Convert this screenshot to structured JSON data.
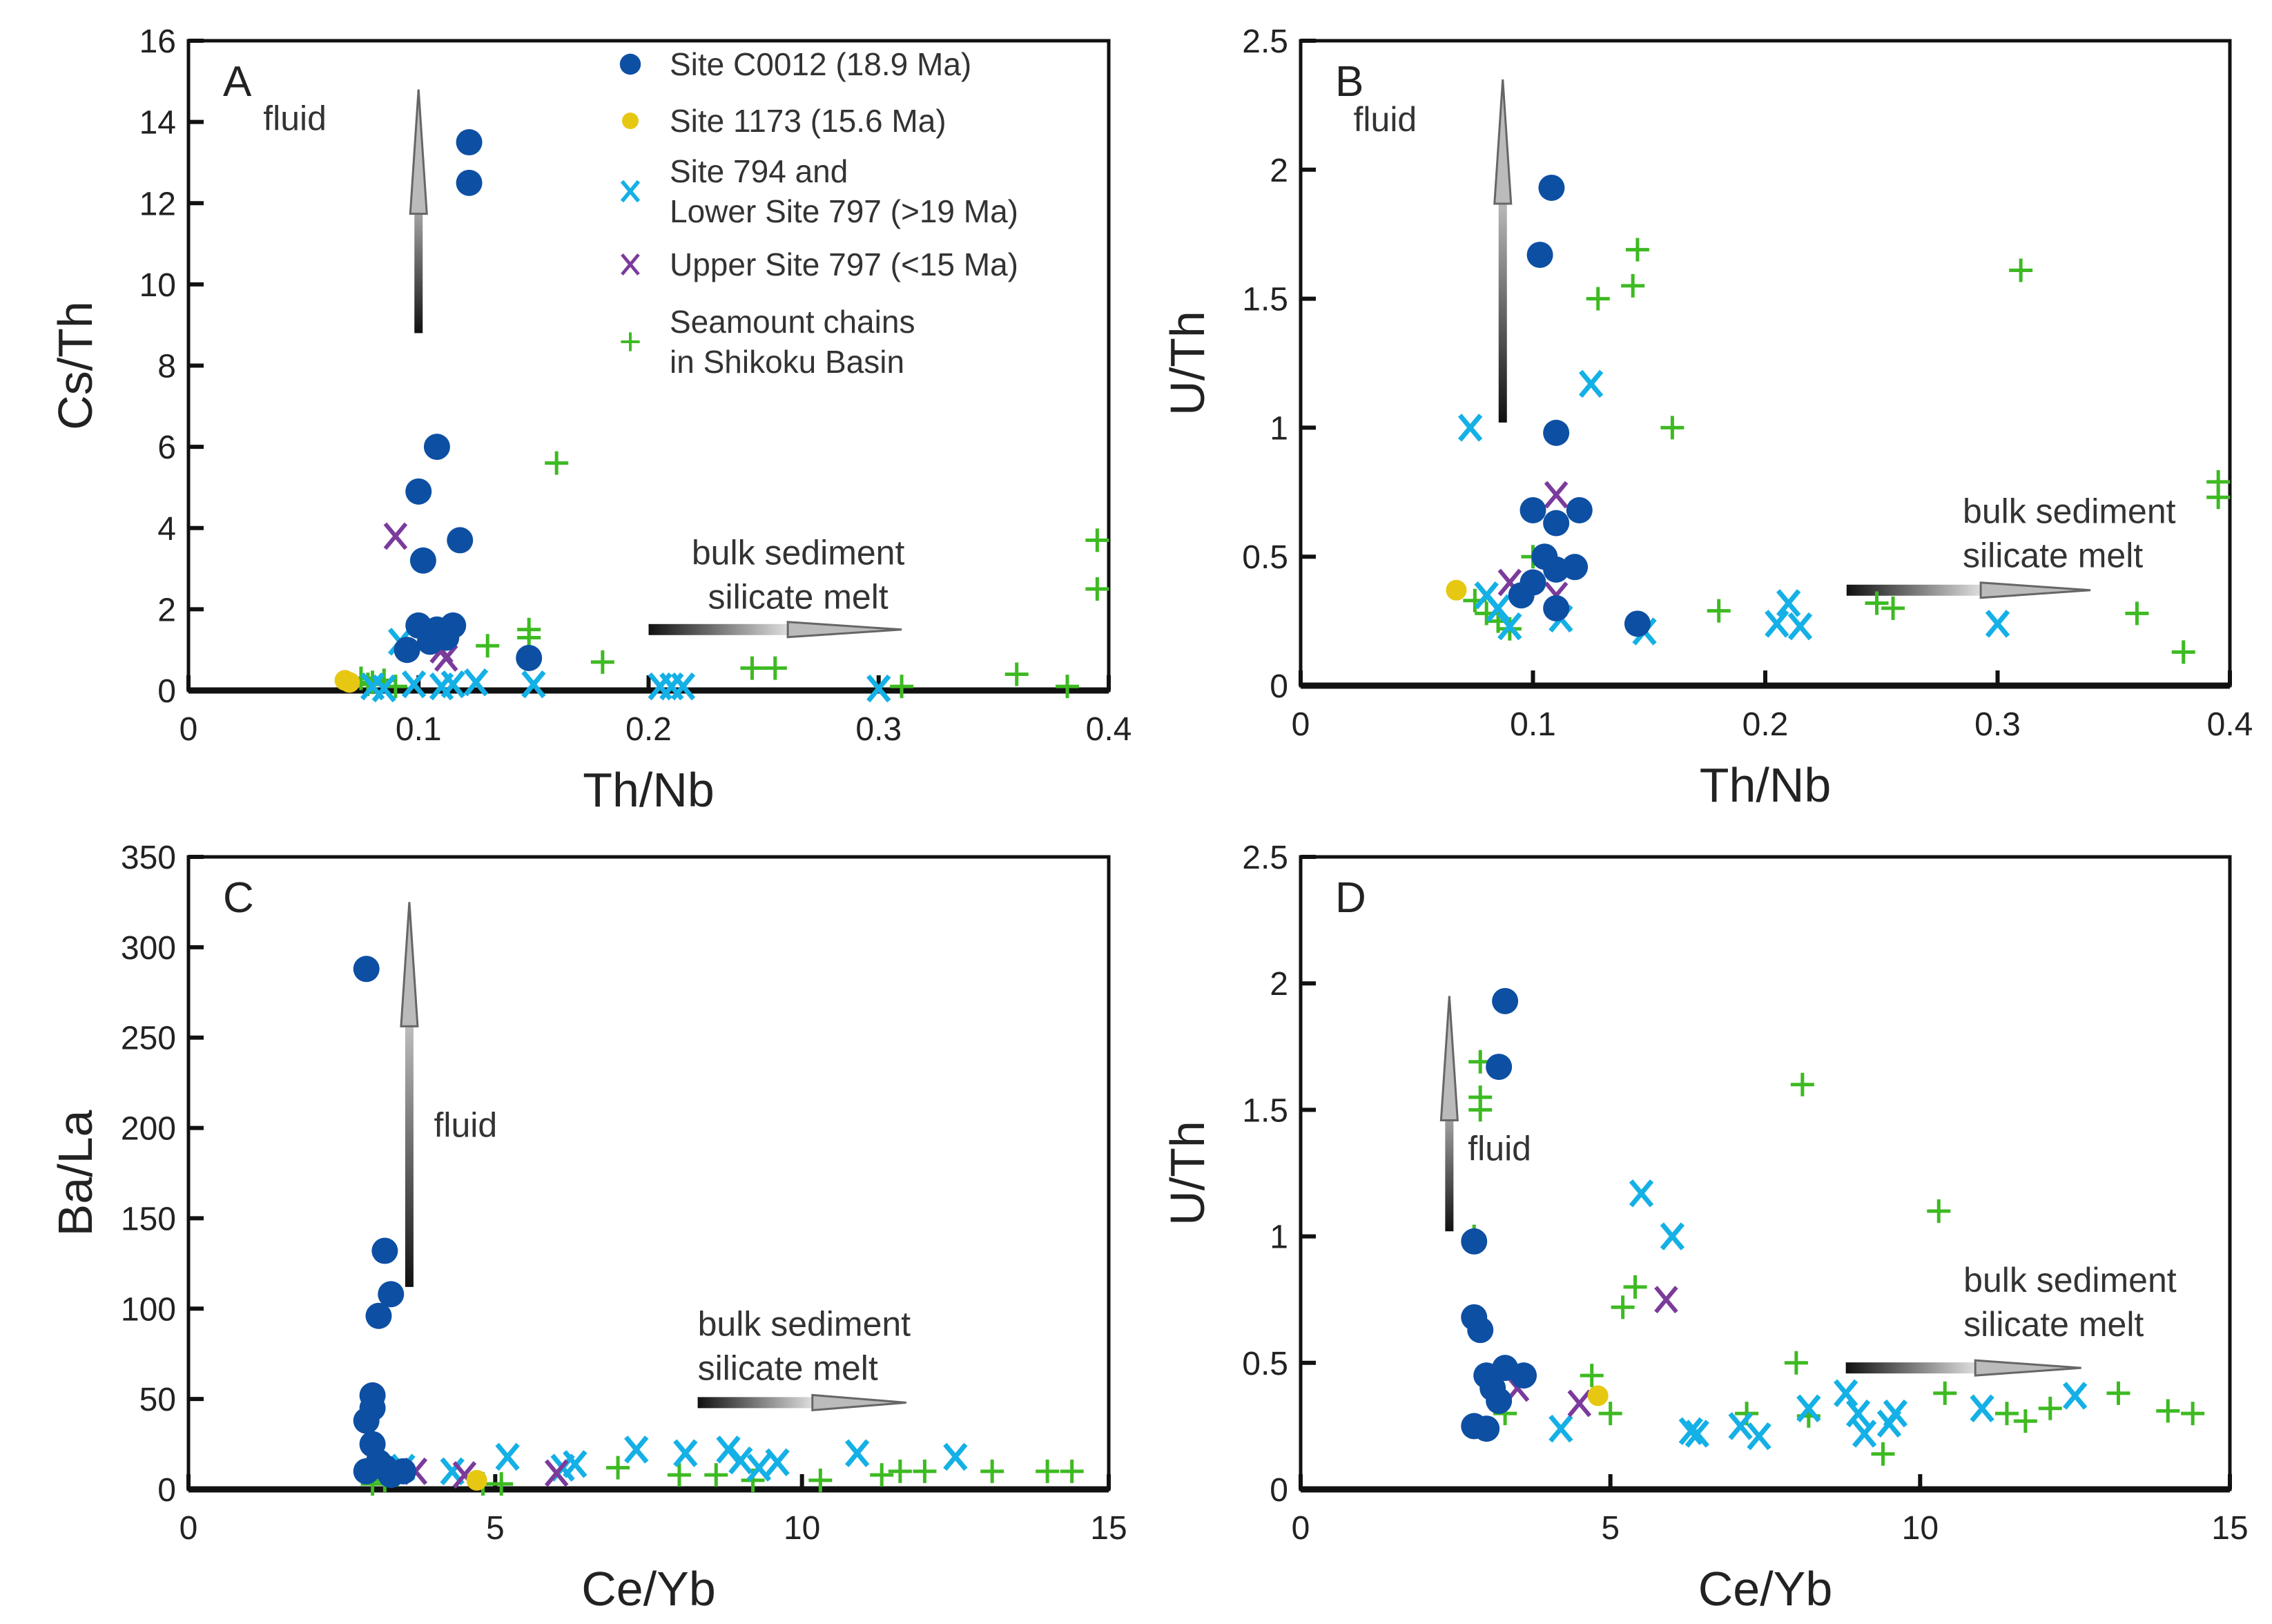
{
  "colors": {
    "C0012": "#0d4fa3",
    "1173": "#e6c812",
    "794": "#14b0e6",
    "797": "#7b3b9b",
    "seamount": "#3dba22"
  },
  "legend": [
    {
      "key": "C0012",
      "marker": "circle",
      "lines": [
        "Site C0012 (18.9 Ma)"
      ]
    },
    {
      "key": "1173",
      "marker": "circle",
      "lines": [
        "Site 1173 (15.6 Ma)"
      ]
    },
    {
      "key": "794",
      "marker": "x",
      "lines": [
        "Site 794 and",
        "Lower Site 797 (>19 Ma)"
      ]
    },
    {
      "key": "797",
      "marker": "x",
      "lines": [
        "Upper Site 797 (<15 Ma)"
      ]
    },
    {
      "key": "seamount",
      "marker": "plus",
      "lines": [
        "Seamount chains",
        "in Shikoku Basin"
      ]
    }
  ],
  "chart_data": [
    {
      "type": "scatter",
      "panel": "A",
      "xlabel": "Th/Nb",
      "ylabel": "Cs/Th",
      "xlim": [
        0,
        0.4
      ],
      "ylim": [
        0,
        16
      ],
      "xticks": [
        "0",
        "0.1",
        "0.2",
        "0.3",
        "0.4"
      ],
      "yticks": [
        "0",
        "2",
        "4",
        "6",
        "8",
        "10",
        "12",
        "14",
        "16"
      ],
      "annotations": {
        "fluid": "fluid",
        "melt": [
          "bulk sediment",
          "silicate melt"
        ]
      },
      "series": {
        "C0012": [
          [
            0.122,
            13.5
          ],
          [
            0.122,
            12.5
          ],
          [
            0.108,
            6.0
          ],
          [
            0.1,
            4.9
          ],
          [
            0.118,
            3.7
          ],
          [
            0.102,
            3.2
          ],
          [
            0.1,
            1.6
          ],
          [
            0.108,
            1.5
          ],
          [
            0.115,
            1.6
          ],
          [
            0.112,
            1.3
          ],
          [
            0.095,
            1.0
          ],
          [
            0.148,
            0.8
          ],
          [
            0.105,
            1.2
          ]
        ],
        "1173": [
          [
            0.068,
            0.25
          ],
          [
            0.07,
            0.2
          ]
        ],
        "794": [
          [
            0.092,
            1.2
          ],
          [
            0.098,
            0.15
          ],
          [
            0.11,
            0.1
          ],
          [
            0.115,
            0.15
          ],
          [
            0.125,
            0.2
          ],
          [
            0.15,
            0.15
          ],
          [
            0.205,
            0.1
          ],
          [
            0.21,
            0.1
          ],
          [
            0.215,
            0.1
          ],
          [
            0.3,
            0.05
          ],
          [
            0.08,
            0.1
          ],
          [
            0.085,
            0.05
          ]
        ],
        "797": [
          [
            0.09,
            3.8
          ],
          [
            0.11,
            1.0
          ],
          [
            0.112,
            0.8
          ]
        ],
        "seamount": [
          [
            0.16,
            5.6
          ],
          [
            0.395,
            3.7
          ],
          [
            0.395,
            2.5
          ],
          [
            0.148,
            1.5
          ],
          [
            0.148,
            1.3
          ],
          [
            0.13,
            1.1
          ],
          [
            0.18,
            0.7
          ],
          [
            0.245,
            0.55
          ],
          [
            0.255,
            0.55
          ],
          [
            0.31,
            0.1
          ],
          [
            0.36,
            0.4
          ],
          [
            0.382,
            0.1
          ],
          [
            0.075,
            0.3
          ],
          [
            0.08,
            0.2
          ],
          [
            0.085,
            0.25
          ],
          [
            0.09,
            0.1
          ],
          [
            0.078,
            0.15
          ]
        ]
      }
    },
    {
      "type": "scatter",
      "panel": "B",
      "xlabel": "Th/Nb",
      "ylabel": "U/Th",
      "xlim": [
        0,
        0.4
      ],
      "ylim": [
        0,
        2.5
      ],
      "xticks": [
        "0",
        "0.1",
        "0.2",
        "0.3",
        "0.4"
      ],
      "yticks": [
        "0",
        "0.5",
        "1",
        "1.5",
        "2",
        "2.5"
      ],
      "annotations": {
        "fluid": "fluid",
        "melt": [
          "bulk sediment",
          "silicate melt"
        ]
      },
      "series": {
        "C0012": [
          [
            0.108,
            1.93
          ],
          [
            0.103,
            1.67
          ],
          [
            0.11,
            0.98
          ],
          [
            0.1,
            0.68
          ],
          [
            0.12,
            0.68
          ],
          [
            0.11,
            0.63
          ],
          [
            0.105,
            0.5
          ],
          [
            0.118,
            0.46
          ],
          [
            0.11,
            0.45
          ],
          [
            0.1,
            0.4
          ],
          [
            0.11,
            0.3
          ],
          [
            0.145,
            0.24
          ],
          [
            0.095,
            0.35
          ]
        ],
        "1173": [
          [
            0.067,
            0.37
          ]
        ],
        "794": [
          [
            0.073,
            1.0
          ],
          [
            0.125,
            1.17
          ],
          [
            0.148,
            0.21
          ],
          [
            0.205,
            0.24
          ],
          [
            0.21,
            0.32
          ],
          [
            0.215,
            0.23
          ],
          [
            0.3,
            0.24
          ],
          [
            0.112,
            0.26
          ],
          [
            0.08,
            0.35
          ],
          [
            0.085,
            0.3
          ],
          [
            0.09,
            0.23
          ]
        ],
        "797": [
          [
            0.11,
            0.74
          ],
          [
            0.11,
            0.35
          ],
          [
            0.09,
            0.4
          ]
        ],
        "seamount": [
          [
            0.145,
            1.69
          ],
          [
            0.143,
            1.55
          ],
          [
            0.128,
            1.5
          ],
          [
            0.31,
            1.61
          ],
          [
            0.16,
            1.0
          ],
          [
            0.395,
            0.79
          ],
          [
            0.395,
            0.73
          ],
          [
            0.1,
            0.5
          ],
          [
            0.18,
            0.29
          ],
          [
            0.248,
            0.32
          ],
          [
            0.255,
            0.3
          ],
          [
            0.36,
            0.28
          ],
          [
            0.38,
            0.13
          ],
          [
            0.08,
            0.28
          ],
          [
            0.085,
            0.25
          ],
          [
            0.09,
            0.22
          ],
          [
            0.075,
            0.33
          ]
        ]
      }
    },
    {
      "type": "scatter",
      "panel": "C",
      "xlabel": "Ce/Yb",
      "ylabel": "Ba/La",
      "xlim": [
        0,
        15
      ],
      "ylim": [
        0,
        350
      ],
      "xticks": [
        "0",
        "5",
        "10",
        "15"
      ],
      "yticks": [
        "0",
        "50",
        "100",
        "150",
        "200",
        "250",
        "300",
        "350"
      ],
      "annotations": {
        "fluid": "fluid",
        "melt": [
          "bulk sediment",
          "silicate melt"
        ]
      },
      "series": {
        "C0012": [
          [
            2.9,
            288
          ],
          [
            3.2,
            132
          ],
          [
            3.3,
            108
          ],
          [
            3.1,
            96
          ],
          [
            3.0,
            52
          ],
          [
            3.0,
            45
          ],
          [
            2.9,
            38
          ],
          [
            3.0,
            25
          ],
          [
            3.1,
            15
          ],
          [
            3.2,
            12
          ],
          [
            2.9,
            10
          ],
          [
            3.3,
            8
          ],
          [
            3.5,
            10
          ]
        ],
        "1173": [
          [
            4.7,
            5
          ]
        ],
        "794": [
          [
            3.5,
            12
          ],
          [
            4.3,
            10
          ],
          [
            5.2,
            18
          ],
          [
            6.1,
            12
          ],
          [
            6.3,
            14
          ],
          [
            7.3,
            22
          ],
          [
            8.1,
            20
          ],
          [
            8.8,
            22
          ],
          [
            9.0,
            16
          ],
          [
            9.3,
            12
          ],
          [
            9.6,
            15
          ],
          [
            10.9,
            20
          ],
          [
            12.5,
            18
          ]
        ],
        "797": [
          [
            3.7,
            10
          ],
          [
            4.5,
            8
          ],
          [
            6.0,
            9
          ]
        ],
        "seamount": [
          [
            3.0,
            3
          ],
          [
            3.4,
            8
          ],
          [
            4.8,
            3
          ],
          [
            5.1,
            3
          ],
          [
            7.0,
            12
          ],
          [
            8.0,
            8
          ],
          [
            8.6,
            8
          ],
          [
            9.2,
            5
          ],
          [
            10.3,
            5
          ],
          [
            11.3,
            8
          ],
          [
            11.6,
            10
          ],
          [
            12.0,
            10
          ],
          [
            13.1,
            10
          ],
          [
            14.0,
            10
          ],
          [
            14.4,
            10
          ],
          [
            3.2,
            5
          ]
        ]
      }
    },
    {
      "type": "scatter",
      "panel": "D",
      "xlabel": "Ce/Yb",
      "ylabel": "U/Th",
      "xlim": [
        0,
        15
      ],
      "ylim": [
        0,
        2.5
      ],
      "xticks": [
        "0",
        "5",
        "10",
        "15"
      ],
      "yticks": [
        "0",
        "0.5",
        "1",
        "1.5",
        "2",
        "2.5"
      ],
      "annotations": {
        "fluid": "fluid",
        "melt": [
          "bulk sediment",
          "silicate melt"
        ]
      },
      "series": {
        "C0012": [
          [
            3.3,
            1.93
          ],
          [
            3.2,
            1.67
          ],
          [
            2.8,
            0.98
          ],
          [
            2.8,
            0.68
          ],
          [
            2.9,
            0.63
          ],
          [
            3.0,
            0.45
          ],
          [
            3.3,
            0.48
          ],
          [
            3.6,
            0.45
          ],
          [
            3.1,
            0.4
          ],
          [
            2.8,
            0.25
          ],
          [
            3.0,
            0.24
          ],
          [
            3.2,
            0.35
          ]
        ],
        "1173": [
          [
            4.8,
            0.37
          ]
        ],
        "794": [
          [
            5.5,
            1.17
          ],
          [
            6.0,
            1.0
          ],
          [
            4.2,
            0.24
          ],
          [
            6.3,
            0.23
          ],
          [
            6.4,
            0.22
          ],
          [
            7.1,
            0.25
          ],
          [
            7.4,
            0.21
          ],
          [
            8.2,
            0.32
          ],
          [
            8.8,
            0.38
          ],
          [
            9.0,
            0.3
          ],
          [
            9.1,
            0.22
          ],
          [
            9.5,
            0.26
          ],
          [
            9.6,
            0.3
          ],
          [
            11.0,
            0.32
          ],
          [
            12.5,
            0.37
          ]
        ],
        "797": [
          [
            5.9,
            0.75
          ],
          [
            3.5,
            0.4
          ],
          [
            4.5,
            0.34
          ]
        ],
        "seamount": [
          [
            2.9,
            1.69
          ],
          [
            2.9,
            1.55
          ],
          [
            2.9,
            1.5
          ],
          [
            8.1,
            1.6
          ],
          [
            10.3,
            1.1
          ],
          [
            2.8,
            1.0
          ],
          [
            5.4,
            0.8
          ],
          [
            5.2,
            0.72
          ],
          [
            8.0,
            0.5
          ],
          [
            4.7,
            0.45
          ],
          [
            5.0,
            0.3
          ],
          [
            7.2,
            0.3
          ],
          [
            8.2,
            0.29
          ],
          [
            10.4,
            0.38
          ],
          [
            11.4,
            0.3
          ],
          [
            11.7,
            0.27
          ],
          [
            12.1,
            0.32
          ],
          [
            13.2,
            0.38
          ],
          [
            14.0,
            0.31
          ],
          [
            14.4,
            0.3
          ],
          [
            9.4,
            0.14
          ],
          [
            3.3,
            0.3
          ]
        ]
      }
    }
  ]
}
